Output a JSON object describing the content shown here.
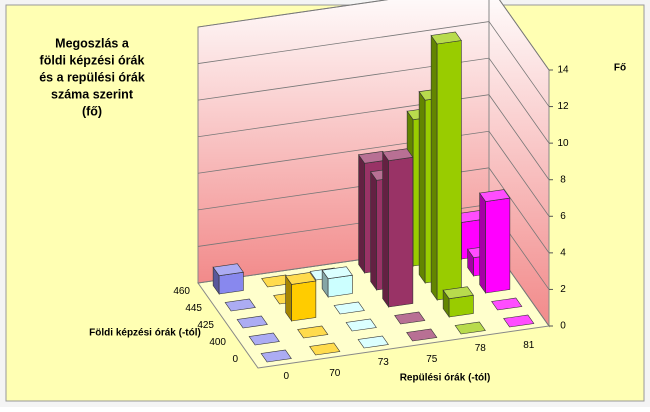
{
  "chart_data": {
    "type": "bar3d",
    "title": [
      "Megoszlás a",
      "földi  képzési órák",
      "és a repülési órák",
      "száma szerint",
      "(fő)"
    ],
    "x_label": "Repülési órák (-tól)",
    "depth_label": "Földi képzési órák (-tól)",
    "z_label": "Fő",
    "categories": [
      "0",
      "70",
      "73",
      "75",
      "78",
      "81"
    ],
    "colors": [
      "#8888ee",
      "#ffcc00",
      "#ccffff",
      "#993366",
      "#99cc00",
      "#ff00ff"
    ],
    "series": [
      {
        "name": "0",
        "values": [
          0,
          0,
          0,
          0,
          0,
          0
        ]
      },
      {
        "name": "400",
        "values": [
          0,
          0,
          0,
          0,
          1,
          0
        ]
      },
      {
        "name": "425",
        "values": [
          0,
          2,
          0,
          8,
          14,
          5
        ]
      },
      {
        "name": "445",
        "values": [
          0,
          0,
          1,
          6,
          10,
          1
        ]
      },
      {
        "name": "460",
        "values": [
          1,
          0,
          0,
          6,
          8,
          2
        ]
      }
    ],
    "ylim": [
      0,
      14
    ],
    "yticks": [
      0,
      2,
      4,
      6,
      8,
      10,
      12,
      14
    ],
    "grid": true
  }
}
